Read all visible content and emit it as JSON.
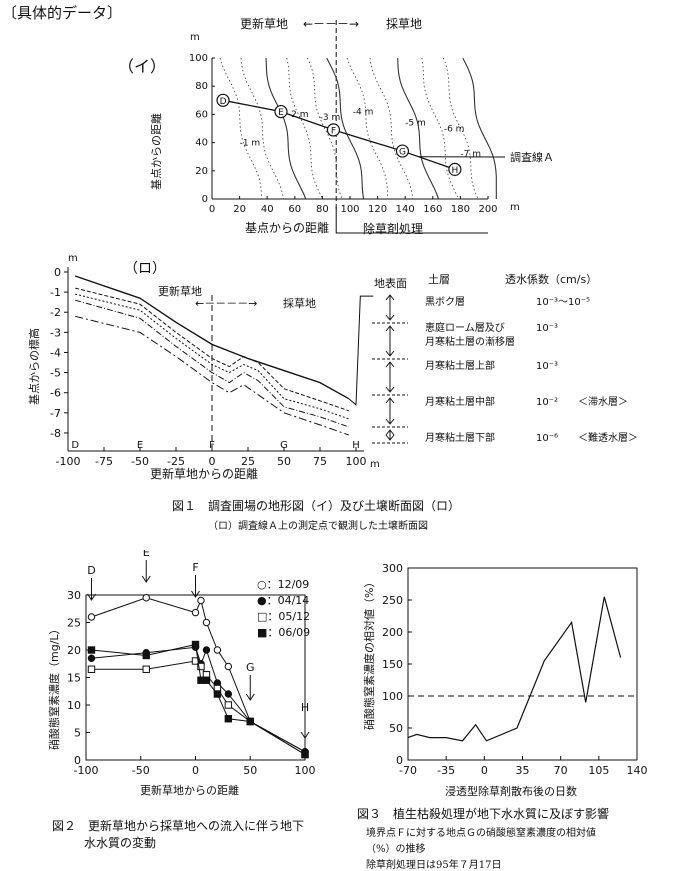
{
  "header": {
    "title": "〔具体的データ〕"
  },
  "fig1": {
    "caption": "図１　調査圃場の地形図（イ）及び土壌断面図（ロ）",
    "subcaption": "（ロ）調査線Ａ上の測定点で観測した土壌断面図",
    "map": {
      "label": "（イ）",
      "region_left": "更新草地",
      "region_right": "採草地",
      "arrow": "←－－－→",
      "ylabel": "基点からの距離",
      "xlabel": "基点からの距離",
      "unit": "m",
      "treatment_label": "除草剤処理",
      "survey_line_label": "調査線Ａ",
      "x_ticks": [
        "0",
        "20",
        "40",
        "60",
        "80",
        "100",
        "120",
        "140",
        "160",
        "180",
        "200"
      ],
      "y_ticks": [
        "100",
        "80",
        "60",
        "40",
        "20",
        "0"
      ],
      "contour_labels": [
        "-1 m",
        "-2 m",
        "-3 m",
        "-4 m",
        "-5 m",
        "-6 m",
        "-7 m"
      ],
      "points": [
        {
          "name": "D",
          "x": 8,
          "y": 70
        },
        {
          "name": "E",
          "x": 50,
          "y": 62
        },
        {
          "name": "F",
          "x": 88,
          "y": 49
        },
        {
          "name": "G",
          "x": 138,
          "y": 34
        },
        {
          "name": "H",
          "x": 176,
          "y": 21
        }
      ]
    },
    "section": {
      "label": "（ロ）",
      "region_left": "更新草地",
      "region_right": "採草地",
      "arrow": "←－－－－→",
      "ylabel": "基点からの標高",
      "xlabel": "更新草地からの距離",
      "unit_y": "m",
      "unit_x": "m",
      "surface_label": "地表面",
      "y_ticks": [
        "0",
        "-1",
        "-2",
        "-3",
        "-4",
        "-5",
        "-6",
        "-7",
        "-8"
      ],
      "x_ticks": [
        "-100",
        "-75",
        "-50",
        "-25",
        "0",
        "25",
        "50",
        "75",
        "100"
      ],
      "point_labels": [
        "D",
        "E",
        "F",
        "G",
        "H"
      ],
      "legend_head": {
        "layer": "土層",
        "perm": "透水係数（cm/s）"
      },
      "layers": [
        {
          "name": "黒ボク層",
          "perm": "10⁻³～10⁻⁵",
          "note": ""
        },
        {
          "name": "恵庭ローム層及び",
          "name2": "月寒粘土層の漸移層",
          "perm": "10⁻³",
          "note": ""
        },
        {
          "name": "月寒粘土層上部",
          "perm": "10⁻³",
          "note": ""
        },
        {
          "name": "月寒粘土層中部",
          "perm": "10⁻²",
          "note": "＜滞水層＞"
        },
        {
          "name": "月寒粘土層下部",
          "perm": "10⁻⁶",
          "note": "＜難透水層＞"
        }
      ]
    }
  },
  "chart_data": [
    {
      "type": "line",
      "title": "図１（ロ）土壌断面図",
      "xlabel": "更新草地からの距離",
      "ylabel": "基点からの標高",
      "xlim": [
        -100,
        100
      ],
      "ylim": [
        -8.5,
        0
      ],
      "series": [
        {
          "name": "地表面",
          "x": [
            -95,
            -50,
            -25,
            0,
            25,
            50,
            75,
            95
          ],
          "values": [
            -0.2,
            -1.3,
            -2.5,
            -3.6,
            -4.3,
            -4.9,
            -5.5,
            -6.3
          ]
        },
        {
          "name": "黒ボク層下端",
          "x": [
            -95,
            -50,
            -25,
            0,
            12,
            22,
            32,
            50,
            75,
            95
          ],
          "values": [
            -0.8,
            -1.6,
            -3.0,
            -4.3,
            -4.7,
            -4.2,
            -4.5,
            -5.8,
            -6.4,
            -6.9
          ]
        },
        {
          "name": "漸移層下端",
          "x": [
            -95,
            -50,
            -25,
            0,
            12,
            22,
            32,
            50,
            75,
            95
          ],
          "values": [
            -1.1,
            -1.9,
            -3.3,
            -4.6,
            -5.0,
            -4.6,
            -4.9,
            -6.3,
            -6.8,
            -7.3
          ]
        },
        {
          "name": "月寒粘土層上部下端",
          "x": [
            -95,
            -50,
            -25,
            0,
            12,
            22,
            32,
            50,
            75,
            95
          ],
          "values": [
            -1.4,
            -2.3,
            -3.7,
            -5.0,
            -5.5,
            -5.0,
            -5.4,
            -6.7,
            -7.2,
            -7.7
          ]
        },
        {
          "name": "月寒粘土層中部下端",
          "x": [
            -95,
            -50,
            -25,
            0,
            12,
            22,
            32,
            50,
            75,
            95
          ],
          "values": [
            -2.2,
            -3.0,
            -4.2,
            -5.5,
            -6.0,
            -5.6,
            -6.1,
            -7.0,
            -7.6,
            -8.1
          ]
        }
      ]
    },
    {
      "type": "line",
      "title": "図２　更新草地から採草地への流入に伴う地下水水質の変動",
      "xlabel": "更新草地からの距離",
      "ylabel": "硝酸態窒素濃度（mg/L）",
      "xlim": [
        -100,
        100
      ],
      "ylim": [
        0,
        30
      ],
      "x_ticks": [
        -100,
        -50,
        0,
        50,
        100
      ],
      "y_ticks": [
        0,
        5,
        10,
        15,
        20,
        25,
        30
      ],
      "point_labels": [
        {
          "label": "D",
          "x": -95
        },
        {
          "label": "E",
          "x": -45
        },
        {
          "label": "F",
          "x": 0
        },
        {
          "label": "G",
          "x": 50
        },
        {
          "label": "H",
          "x": 100
        }
      ],
      "series": [
        {
          "name": "12/09",
          "marker": "open-circle",
          "x": [
            -95,
            -45,
            0,
            5,
            10,
            20,
            30,
            50,
            100
          ],
          "values": [
            26,
            29.5,
            26.8,
            29,
            25,
            20,
            17,
            7,
            1.5
          ]
        },
        {
          "name": "04/14",
          "marker": "filled-circle",
          "x": [
            -95,
            -45,
            0,
            5,
            10,
            20,
            30,
            50,
            100
          ],
          "values": [
            18.5,
            19.5,
            20.5,
            17.5,
            20,
            14,
            12,
            7,
            1.5
          ]
        },
        {
          "name": "05/12",
          "marker": "open-square",
          "x": [
            -95,
            -45,
            0,
            5,
            10,
            20,
            30,
            50,
            100
          ],
          "values": [
            16.5,
            16.5,
            18,
            17,
            15.5,
            13,
            10,
            7,
            1
          ]
        },
        {
          "name": "06/09",
          "marker": "filled-square",
          "x": [
            -95,
            -45,
            0,
            5,
            10,
            20,
            30,
            50,
            100
          ],
          "values": [
            20,
            19,
            21,
            14.5,
            14.5,
            12,
            7.5,
            7,
            1
          ]
        }
      ]
    },
    {
      "type": "line",
      "title": "図３　植生枯殺処理が地下水水質に及ぼす影響",
      "xlabel": "浸透型除草剤散布後の日数",
      "ylabel": "硝酸態窒素濃度の相対値（%）",
      "xlim": [
        -70,
        140
      ],
      "ylim": [
        0,
        300
      ],
      "x_ticks": [
        -70,
        -35,
        0,
        35,
        70,
        105,
        140
      ],
      "y_ticks": [
        0,
        50,
        100,
        150,
        200,
        250,
        300
      ],
      "reference_line": 100,
      "series": [
        {
          "name": "相対値",
          "x": [
            -70,
            -62,
            -50,
            -35,
            -20,
            -8,
            2,
            30,
            55,
            80,
            93,
            110,
            125
          ],
          "values": [
            35,
            40,
            35,
            35,
            30,
            55,
            30,
            50,
            155,
            215,
            90,
            255,
            160
          ]
        }
      ]
    }
  ],
  "fig2": {
    "caption_line1": "図２　更新草地から採草地への流入に伴う地下",
    "caption_line2": "水水質の変動",
    "legend": [
      "○：12/09",
      "●：04/14",
      "□：05/12",
      "■：06/09"
    ]
  },
  "fig3": {
    "caption": "図３　植生枯殺処理が地下水水質に及ぼす影響",
    "note1": "境界点Ｆに対する地点Ｇの硝酸態窒素濃度の相対値",
    "note2": "（%）の推移",
    "note3": "除草剤処理日は95年７月17日"
  }
}
